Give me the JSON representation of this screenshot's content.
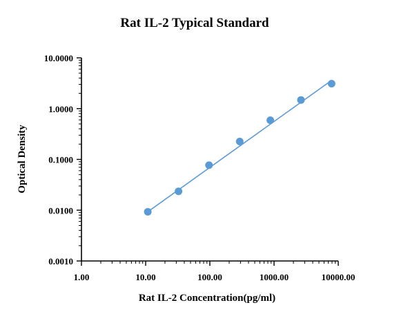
{
  "chart_data": {
    "type": "scatter",
    "title": "Rat IL-2 Typical Standard",
    "xlabel": "Rat IL-2 Concentration(pg/ml)",
    "ylabel": "Optical Density",
    "xscale": "log",
    "yscale": "log",
    "xlim": [
      1,
      10000
    ],
    "ylim": [
      0.001,
      10
    ],
    "x_ticks": [
      "1.00",
      "10.00",
      "100.00",
      "1000.00",
      "10000.00"
    ],
    "y_ticks": [
      "0.0010",
      "0.0100",
      "0.1000",
      "1.0000",
      "10.0000"
    ],
    "grid": false,
    "point_color": "#5b9bd5",
    "line_color": "#5b9bd5",
    "series": [
      {
        "x": [
          10.8,
          32.5,
          97,
          292,
          875,
          2625,
          7875
        ],
        "y": [
          0.0093,
          0.0235,
          0.077,
          0.225,
          0.59,
          1.48,
          3.1
        ]
      }
    ],
    "fit_line": {
      "x": [
        10.8,
        7875
      ],
      "y": [
        0.0093,
        3.6
      ]
    }
  }
}
